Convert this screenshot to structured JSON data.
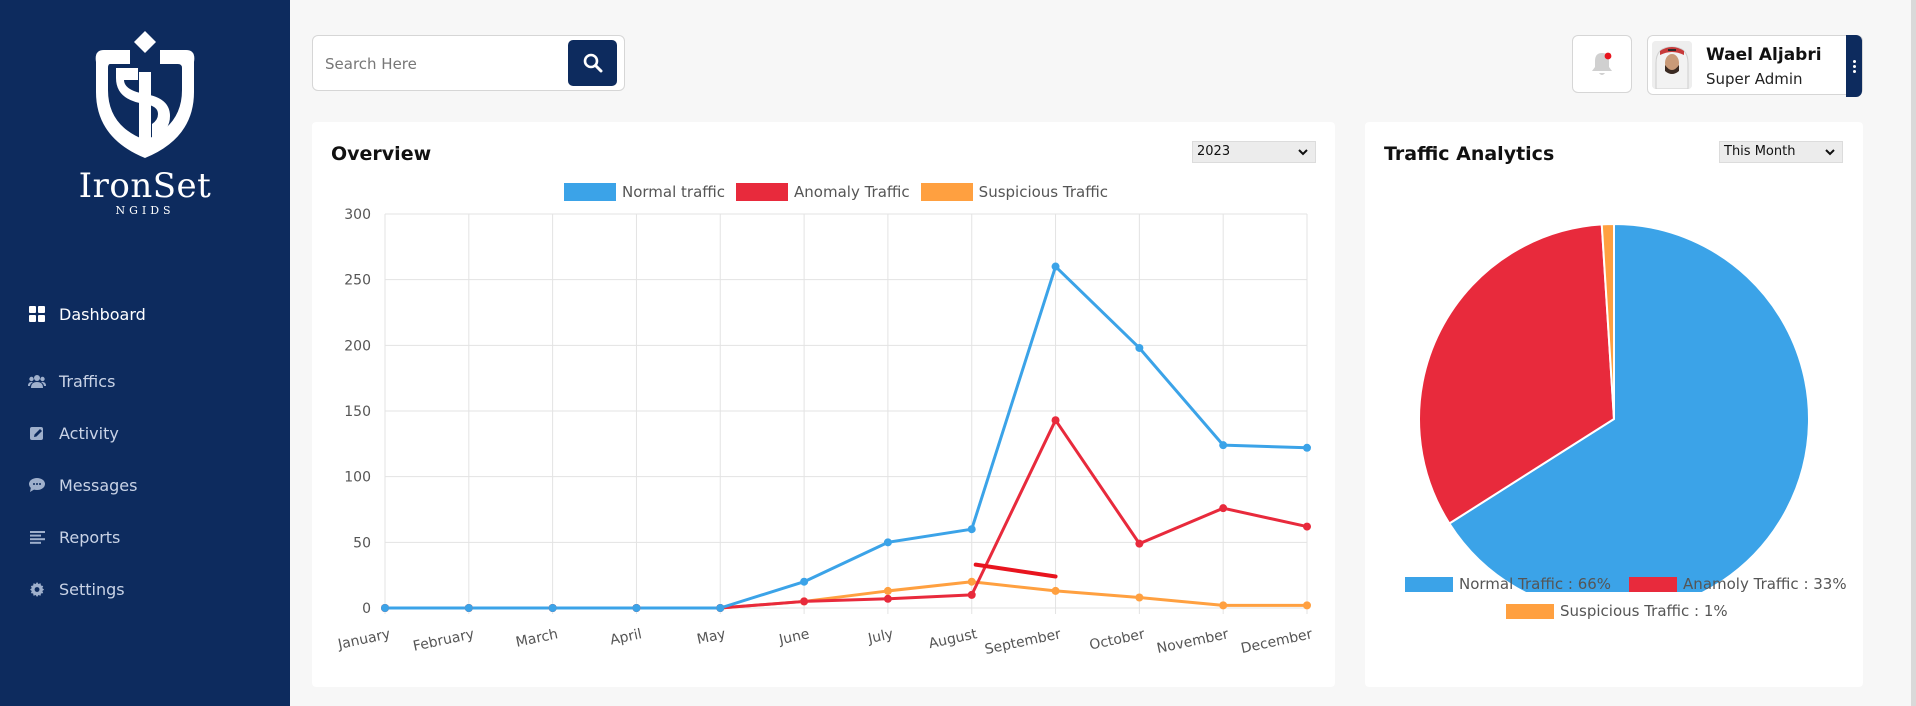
{
  "brand": {
    "name": "IronSet",
    "tagline": "NGIDS"
  },
  "sidebar": {
    "items": [
      {
        "label": "Dashboard",
        "icon": "dashboard-icon",
        "active": true
      },
      {
        "label": "Traffics",
        "icon": "users-icon",
        "active": false
      },
      {
        "label": "Activity",
        "icon": "edit-icon",
        "active": false
      },
      {
        "label": "Messages",
        "icon": "chat-icon",
        "active": false
      },
      {
        "label": "Reports",
        "icon": "list-icon",
        "active": false
      },
      {
        "label": "Settings",
        "icon": "gear-icon",
        "active": false
      }
    ]
  },
  "search": {
    "placeholder": "Search Here",
    "value": ""
  },
  "user": {
    "name": "Wael Aljabri",
    "role": "Super Admin"
  },
  "notifications": {
    "has_unread": true
  },
  "overview": {
    "title": "Overview",
    "year_select": "2023"
  },
  "traffic": {
    "title": "Traffic Analytics",
    "period_select": "This Month"
  },
  "colors": {
    "primary": "#0d2b5e",
    "normal": "#3ba3e8",
    "anomaly": "#e82a3c",
    "suspicious": "#ffa040"
  },
  "chart_data": [
    {
      "type": "line",
      "title": "Overview",
      "categories": [
        "January",
        "February",
        "March",
        "April",
        "May",
        "June",
        "July",
        "August",
        "September",
        "October",
        "November",
        "December"
      ],
      "series": [
        {
          "name": "Normal traffic",
          "color": "#3ba3e8",
          "values": [
            0,
            0,
            0,
            0,
            0,
            20,
            50,
            60,
            260,
            198,
            124,
            122
          ]
        },
        {
          "name": "Anomaly Traffic",
          "color": "#e82a3c",
          "values": [
            0,
            0,
            0,
            0,
            0,
            5,
            7,
            10,
            143,
            49,
            76,
            62
          ]
        },
        {
          "name": "Suspicious Traffic",
          "color": "#ffa040",
          "values": [
            0,
            0,
            0,
            0,
            0,
            5,
            13,
            20,
            13,
            8,
            2,
            2
          ]
        }
      ],
      "ylim": [
        0,
        300
      ],
      "yticks": [
        0,
        50,
        100,
        150,
        200,
        250,
        300
      ],
      "grid": true,
      "legend": "top"
    },
    {
      "type": "pie",
      "title": "Traffic Analytics",
      "slices": [
        {
          "name": "Normal Traffic",
          "label": "Normal Traffic : 66%",
          "value": 66,
          "color": "#3ba3e8"
        },
        {
          "name": "Anamoly Traffic",
          "label": "Anamoly Traffic : 33%",
          "value": 33,
          "color": "#e82a3c"
        },
        {
          "name": "Suspicious Traffic",
          "label": "Suspicious Traffic : 1%",
          "value": 1,
          "color": "#ffa040"
        }
      ],
      "legend": "bottom"
    }
  ]
}
